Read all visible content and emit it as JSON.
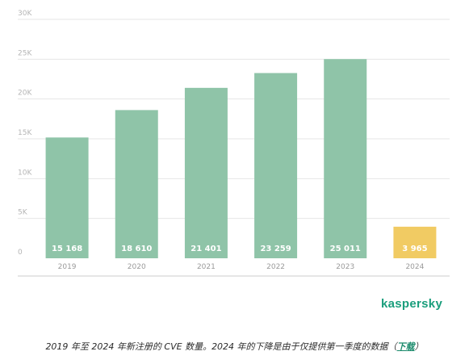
{
  "chart_data": {
    "type": "bar",
    "categories": [
      "2019",
      "2020",
      "2021",
      "2022",
      "2023",
      "2024"
    ],
    "values": [
      15168,
      18610,
      21401,
      23259,
      25011,
      3965
    ],
    "value_labels": [
      "15 168",
      "18 610",
      "21 401",
      "23 259",
      "25 011",
      "3 965"
    ],
    "yticks": [
      0,
      5000,
      10000,
      15000,
      20000,
      25000,
      30000
    ],
    "ytick_labels": [
      "0",
      "5K",
      "10K",
      "15K",
      "20K",
      "25K",
      "30K"
    ],
    "ylim": [
      0,
      30000
    ],
    "grid": true,
    "colors": {
      "default": "#8fc4a8",
      "highlight": "#f1cb63",
      "grid": "#e6e6e6",
      "axis_text": "#b5b5b5",
      "value_text": "#ffffff",
      "baseline": "#cccccc"
    },
    "highlight_index": 5
  },
  "brand": {
    "name": "kaspersky",
    "color": "#1a9e7c"
  },
  "caption": {
    "text": "2019 年至 2024 年新注册的 CVE 数量。2024 年的下降是由于仅提供第一季度的数据（",
    "link": "下载",
    "suffix": "）"
  }
}
